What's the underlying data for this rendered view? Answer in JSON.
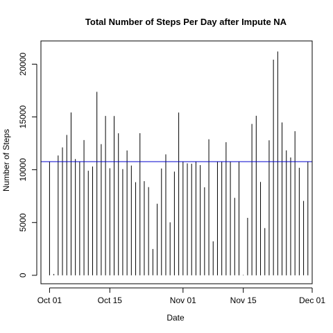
{
  "chart_data": {
    "type": "bar",
    "title": "Total Number of Steps Per Day after Impute NA",
    "xlabel": "Date",
    "ylabel": "Number of Steps",
    "x_tick_labels": [
      "Oct 01",
      "Oct 15",
      "Nov 01",
      "Nov 15",
      "Dec 01"
    ],
    "x_tick_dates": [
      "2012-10-01",
      "2012-10-15",
      "2012-11-01",
      "2012-11-15",
      "2012-12-01"
    ],
    "y_ticks": [
      0,
      5000,
      10000,
      15000,
      20000
    ],
    "xlim": [
      "2012-09-29",
      "2012-12-01"
    ],
    "ylim": [
      -800,
      22200
    ],
    "bar_color": "#000000",
    "grid": false,
    "reference_line": {
      "value": 10766.19,
      "color": "#0000CD"
    },
    "dates": [
      "2012-10-01",
      "2012-10-02",
      "2012-10-03",
      "2012-10-04",
      "2012-10-05",
      "2012-10-06",
      "2012-10-07",
      "2012-10-08",
      "2012-10-09",
      "2012-10-10",
      "2012-10-11",
      "2012-10-12",
      "2012-10-13",
      "2012-10-14",
      "2012-10-15",
      "2012-10-16",
      "2012-10-17",
      "2012-10-18",
      "2012-10-19",
      "2012-10-20",
      "2012-10-21",
      "2012-10-22",
      "2012-10-23",
      "2012-10-24",
      "2012-10-25",
      "2012-10-26",
      "2012-10-27",
      "2012-10-28",
      "2012-10-29",
      "2012-10-30",
      "2012-10-31",
      "2012-11-01",
      "2012-11-02",
      "2012-11-03",
      "2012-11-04",
      "2012-11-05",
      "2012-11-06",
      "2012-11-07",
      "2012-11-08",
      "2012-11-09",
      "2012-11-10",
      "2012-11-11",
      "2012-11-12",
      "2012-11-13",
      "2012-11-14",
      "2012-11-15",
      "2012-11-16",
      "2012-11-17",
      "2012-11-18",
      "2012-11-19",
      "2012-11-20",
      "2012-11-21",
      "2012-11-22",
      "2012-11-23",
      "2012-11-24",
      "2012-11-25",
      "2012-11-26",
      "2012-11-27",
      "2012-11-28",
      "2012-11-29",
      "2012-11-30"
    ],
    "values": [
      10766,
      126,
      11352,
      12116,
      13294,
      15420,
      11015,
      10766,
      12811,
      9900,
      10304,
      17382,
      12426,
      15098,
      10139,
      15084,
      13452,
      10056,
      11829,
      10395,
      8821,
      13460,
      8918,
      8355,
      2492,
      6778,
      10119,
      11458,
      5018,
      9819,
      15414,
      10766,
      10600,
      10571,
      10766,
      10439,
      8334,
      12883,
      3219,
      10766,
      10766,
      12608,
      10765,
      7336,
      10766,
      41,
      5441,
      14339,
      15110,
      8841,
      4472,
      12787,
      20427,
      21194,
      14478,
      11834,
      11162,
      13646,
      10183,
      7047,
      10766
    ]
  }
}
